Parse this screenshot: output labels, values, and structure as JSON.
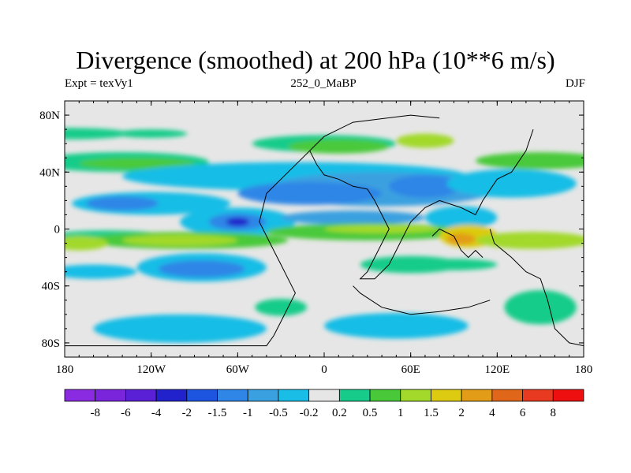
{
  "chart_data": {
    "type": "contour_map",
    "title": "Divergence (smoothed) at 200 hPa (10**6 m/s)",
    "left_label": "Expt = texVy1",
    "center_label": "252_0_MaBP",
    "right_label": "DJF",
    "x_ticks": [
      {
        "lon": -180,
        "label": "180"
      },
      {
        "lon": -120,
        "label": "120W"
      },
      {
        "lon": -60,
        "label": "60W"
      },
      {
        "lon": 0,
        "label": "0"
      },
      {
        "lon": 60,
        "label": "60E"
      },
      {
        "lon": 120,
        "label": "120E"
      },
      {
        "lon": 180,
        "label": "180"
      }
    ],
    "y_ticks": [
      {
        "lat": 80,
        "label": "80N"
      },
      {
        "lat": 40,
        "label": "40N"
      },
      {
        "lat": 0,
        "label": "0"
      },
      {
        "lat": -40,
        "label": "40S"
      },
      {
        "lat": -80,
        "label": "80S"
      }
    ],
    "lon_range": [
      -180,
      180
    ],
    "lat_range": [
      -90,
      90
    ],
    "colorbar": {
      "colors": [
        "#8a2be2",
        "#7a25dc",
        "#5a20d6",
        "#2222cc",
        "#1e55e0",
        "#2f86e6",
        "#3aa0e0",
        "#19bde6",
        "#e6e6e6",
        "#17cc8a",
        "#49c93a",
        "#a2d92a",
        "#dccb10",
        "#e29c18",
        "#e0661a",
        "#e83a20",
        "#ee1010"
      ],
      "labels": [
        "-8",
        "-6",
        "-4",
        "-2",
        "-1.5",
        "-1",
        "-0.5",
        "-0.2",
        "0.2",
        "0.5",
        "1",
        "1.5",
        "2",
        "4",
        "6",
        "8"
      ]
    },
    "fields": [
      {
        "lon": -175,
        "lat": 67,
        "rlon": 40,
        "rlat": 4,
        "level": 1
      },
      {
        "lon": -120,
        "lat": 67,
        "rlon": 25,
        "rlat": 3,
        "level": 1
      },
      {
        "lon": 0,
        "lat": 60,
        "rlon": 50,
        "rlat": 6,
        "level": 1
      },
      {
        "lon": 10,
        "lat": 58,
        "rlon": 35,
        "rlat": 5,
        "level": 2
      },
      {
        "lon": 70,
        "lat": 62,
        "rlon": 20,
        "rlat": 5,
        "level": 3
      },
      {
        "lon": -140,
        "lat": 47,
        "rlon": 60,
        "rlat": 7,
        "level": 1
      },
      {
        "lon": -130,
        "lat": 46,
        "rlon": 40,
        "rlat": 4,
        "level": 2
      },
      {
        "lon": 150,
        "lat": 48,
        "rlon": 45,
        "rlat": 6,
        "level": 2
      },
      {
        "lon": -20,
        "lat": 37,
        "rlon": 120,
        "rlat": 10,
        "level": -1
      },
      {
        "lon": 40,
        "lat": 28,
        "rlon": 80,
        "rlat": 12,
        "level": -2
      },
      {
        "lon": -10,
        "lat": 25,
        "rlon": 50,
        "rlat": 8,
        "level": -3
      },
      {
        "lon": 70,
        "lat": 30,
        "rlon": 25,
        "rlat": 8,
        "level": -3
      },
      {
        "lon": 130,
        "lat": 32,
        "rlon": 45,
        "rlat": 10,
        "level": -1
      },
      {
        "lon": -120,
        "lat": 18,
        "rlon": 55,
        "rlat": 8,
        "level": -1
      },
      {
        "lon": -140,
        "lat": 18,
        "rlon": 25,
        "rlat": 5,
        "level": -3
      },
      {
        "lon": -60,
        "lat": 5,
        "rlon": 40,
        "rlat": 10,
        "level": -1
      },
      {
        "lon": -60,
        "lat": 5,
        "rlon": 20,
        "rlat": 6,
        "level": -3
      },
      {
        "lon": -60,
        "lat": 5,
        "rlon": 8,
        "rlat": 3,
        "level": -5
      },
      {
        "lon": 20,
        "lat": 8,
        "rlon": 50,
        "rlat": 5,
        "level": -2
      },
      {
        "lon": 95,
        "lat": 8,
        "rlon": 25,
        "rlat": 8,
        "level": -1
      },
      {
        "lon": -150,
        "lat": -5,
        "rlon": 40,
        "rlat": 4,
        "level": 1
      },
      {
        "lon": -95,
        "lat": -8,
        "rlon": 70,
        "rlat": 6,
        "level": 2
      },
      {
        "lon": -100,
        "lat": -8,
        "rlon": 40,
        "rlat": 4,
        "level": 3
      },
      {
        "lon": -170,
        "lat": -10,
        "rlon": 20,
        "rlat": 5,
        "level": 3
      },
      {
        "lon": 30,
        "lat": -2,
        "rlon": 70,
        "rlat": 6,
        "level": 2
      },
      {
        "lon": 40,
        "lat": 0,
        "rlon": 40,
        "rlat": 3,
        "level": 3
      },
      {
        "lon": 100,
        "lat": -5,
        "rlon": 20,
        "rlat": 8,
        "level": 4
      },
      {
        "lon": 95,
        "lat": -7,
        "rlon": 10,
        "rlat": 4,
        "level": 5
      },
      {
        "lon": 145,
        "lat": -8,
        "rlon": 40,
        "rlat": 6,
        "level": 3
      },
      {
        "lon": -85,
        "lat": -27,
        "rlon": 45,
        "rlat": 10,
        "level": -1
      },
      {
        "lon": -85,
        "lat": -28,
        "rlon": 30,
        "rlat": 6,
        "level": -3
      },
      {
        "lon": -160,
        "lat": -30,
        "rlon": 30,
        "rlat": 5,
        "level": -1
      },
      {
        "lon": 60,
        "lat": -25,
        "rlon": 35,
        "rlat": 6,
        "level": 1
      },
      {
        "lon": 90,
        "lat": -25,
        "rlon": 30,
        "rlat": 4,
        "level": 1
      },
      {
        "lon": -100,
        "lat": -70,
        "rlon": 60,
        "rlat": 10,
        "level": -1
      },
      {
        "lon": 50,
        "lat": -68,
        "rlon": 50,
        "rlat": 9,
        "level": -1
      },
      {
        "lon": 150,
        "lat": -55,
        "rlon": 25,
        "rlat": 12,
        "level": 1
      },
      {
        "lon": -30,
        "lat": -55,
        "rlon": 18,
        "rlat": 6,
        "level": 1
      }
    ],
    "coast_polylines": [
      [
        [
          -180,
          -82
        ],
        [
          -40,
          -82
        ],
        [
          -35,
          -75
        ],
        [
          -30,
          -65
        ],
        [
          -25,
          -55
        ],
        [
          -20,
          -45
        ],
        [
          -25,
          -35
        ],
        [
          -30,
          -25
        ],
        [
          -35,
          -15
        ],
        [
          -40,
          -5
        ],
        [
          -45,
          5
        ],
        [
          -40,
          25
        ],
        [
          -30,
          35
        ],
        [
          -20,
          45
        ],
        [
          -10,
          55
        ],
        [
          0,
          65
        ],
        [
          20,
          75
        ],
        [
          60,
          80
        ],
        [
          80,
          78
        ]
      ],
      [
        [
          -10,
          55
        ],
        [
          -5,
          45
        ],
        [
          0,
          38
        ],
        [
          10,
          35
        ],
        [
          20,
          30
        ],
        [
          30,
          28
        ],
        [
          35,
          20
        ],
        [
          40,
          10
        ],
        [
          45,
          0
        ],
        [
          40,
          -10
        ],
        [
          35,
          -20
        ],
        [
          30,
          -30
        ],
        [
          25,
          -35
        ],
        [
          35,
          -35
        ],
        [
          45,
          -25
        ],
        [
          50,
          -15
        ],
        [
          55,
          -5
        ],
        [
          60,
          5
        ],
        [
          70,
          15
        ],
        [
          80,
          20
        ],
        [
          95,
          15
        ],
        [
          105,
          10
        ],
        [
          110,
          20
        ],
        [
          120,
          35
        ],
        [
          130,
          40
        ],
        [
          140,
          55
        ],
        [
          145,
          70
        ]
      ],
      [
        [
          75,
          -5
        ],
        [
          80,
          0
        ],
        [
          90,
          -5
        ],
        [
          95,
          -15
        ],
        [
          100,
          -20
        ],
        [
          105,
          -15
        ],
        [
          110,
          -20
        ]
      ],
      [
        [
          115,
          0
        ],
        [
          118,
          -10
        ],
        [
          130,
          -20
        ],
        [
          140,
          -30
        ],
        [
          150,
          -35
        ],
        [
          155,
          -50
        ],
        [
          160,
          -70
        ],
        [
          170,
          -80
        ],
        [
          180,
          -82
        ]
      ],
      [
        [
          20,
          -40
        ],
        [
          25,
          -45
        ],
        [
          40,
          -55
        ],
        [
          60,
          -60
        ],
        [
          80,
          -58
        ],
        [
          100,
          -55
        ],
        [
          115,
          -50
        ]
      ]
    ]
  }
}
